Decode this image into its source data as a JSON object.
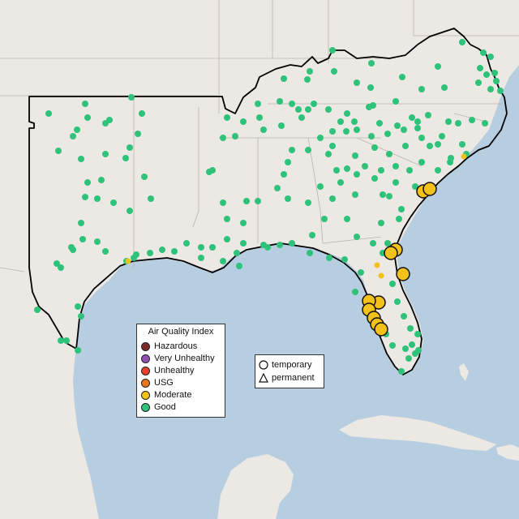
{
  "legend": {
    "title": "Air Quality Index",
    "categories": [
      {
        "label": "Hazardous",
        "color": "#7e2a2a"
      },
      {
        "label": "Very Unhealthy",
        "color": "#8f4fb5"
      },
      {
        "label": "Unhealthy",
        "color": "#e8402b"
      },
      {
        "label": "USG",
        "color": "#e8761a"
      },
      {
        "label": "Moderate",
        "color": "#f2c11a"
      },
      {
        "label": "Good",
        "color": "#2ec27a"
      }
    ]
  },
  "shape_legend": {
    "temporary": "temporary",
    "permanent": "permanent"
  },
  "colors": {
    "water": "#b7cde0",
    "land": "#ece8e3",
    "region_outline": "#000000",
    "state_border": "#b9b3ad"
  }
}
